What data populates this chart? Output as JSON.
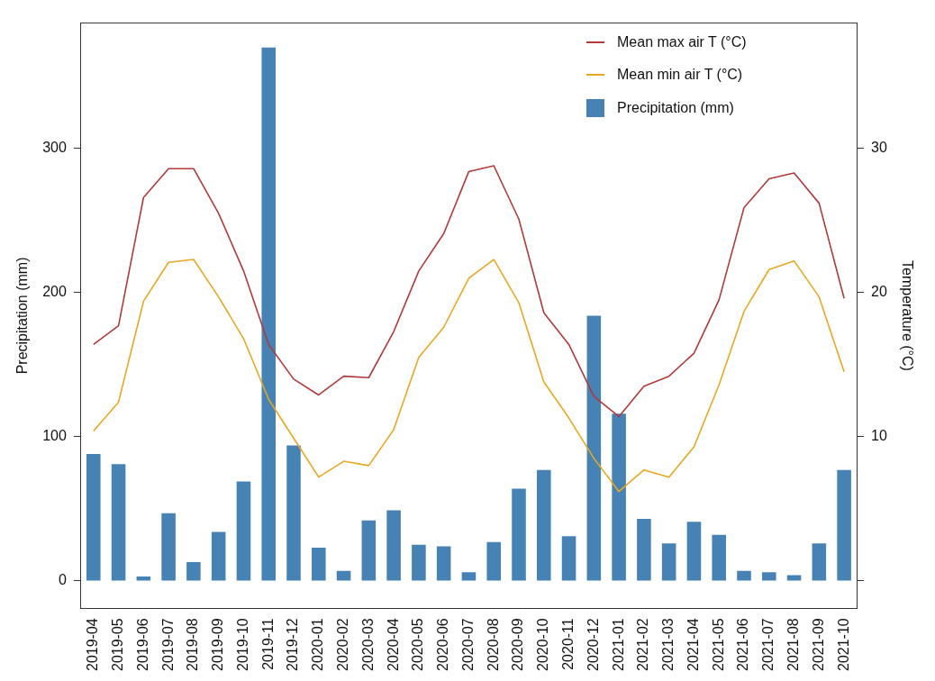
{
  "chart_data": {
    "type": "bar",
    "ylabel": "Precipitation (mm)",
    "y2label": "Temperature (°C)",
    "categories": [
      "2019-04",
      "2019-05",
      "2019-06",
      "2019-07",
      "2019-08",
      "2019-09",
      "2019-10",
      "2019-11",
      "2019-12",
      "2020-01",
      "2020-02",
      "2020-03",
      "2020-04",
      "2020-05",
      "2020-06",
      "2020-07",
      "2020-08",
      "2020-09",
      "2020-10",
      "2020-11",
      "2020-12",
      "2021-01",
      "2021-02",
      "2021-03",
      "2021-04",
      "2021-05",
      "2021-06",
      "2021-07",
      "2021-08",
      "2021-09",
      "2021-10"
    ],
    "series": [
      {
        "name": "Mean max air T (°C)",
        "type": "line",
        "axis": "y2",
        "color": "#b03a3a",
        "values": [
          16.4,
          17.7,
          26.6,
          28.6,
          28.6,
          25.5,
          21.5,
          16.4,
          14.0,
          12.9,
          14.2,
          14.1,
          17.3,
          21.5,
          24.1,
          28.4,
          28.8,
          25.1,
          18.6,
          16.4,
          12.8,
          11.4,
          13.5,
          14.2,
          15.8,
          19.5,
          25.9,
          27.9,
          28.3,
          26.2,
          19.6
        ]
      },
      {
        "name": "Mean min air T (°C)",
        "type": "line",
        "axis": "y2",
        "color": "#e8a820",
        "values": [
          10.4,
          12.4,
          19.4,
          22.1,
          22.3,
          19.7,
          16.8,
          12.6,
          9.9,
          7.2,
          8.3,
          8.0,
          10.5,
          15.5,
          17.6,
          21.0,
          22.3,
          19.3,
          13.8,
          11.3,
          8.5,
          6.2,
          7.7,
          7.2,
          9.3,
          13.6,
          18.7,
          21.6,
          22.2,
          19.7,
          14.5
        ]
      },
      {
        "name": "Precipitation (mm)",
        "axis": "y",
        "color": "#4682b4",
        "values": [
          88,
          81,
          3,
          47,
          13,
          34,
          69,
          370,
          94,
          23,
          7,
          42,
          49,
          25,
          24,
          6,
          27,
          64,
          77,
          31,
          184,
          116,
          43,
          26,
          41,
          32,
          7,
          6,
          4,
          26,
          77
        ]
      }
    ],
    "ylim": [
      -19,
      387
    ],
    "yticks": [
      0,
      100,
      200,
      300
    ],
    "y2lim": [
      -1.9,
      38.7
    ],
    "y2ticks": [
      {
        "value": 0,
        "label": null
      },
      10,
      20,
      30
    ],
    "legend": "top right",
    "grid": false,
    "marker": "none",
    "line_style": "solid"
  }
}
